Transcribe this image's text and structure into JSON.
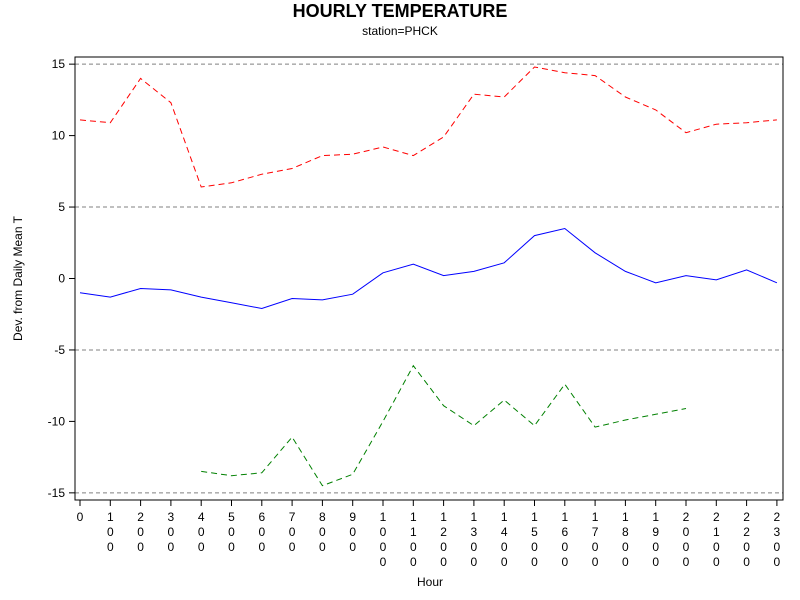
{
  "chart_data": {
    "type": "line",
    "title": "HOURLY TEMPERATURE",
    "subtitle": "station=PHCK",
    "xlabel": "Hour",
    "ylabel": "Dev. from Daily Mean T",
    "ylim": [
      -15.5,
      15.5
    ],
    "yticks": [
      15,
      10,
      5,
      0,
      -5,
      -10,
      -15
    ],
    "reference_lines": [
      15,
      5,
      -5,
      -15
    ],
    "x": [
      "0",
      "100",
      "200",
      "300",
      "400",
      "500",
      "600",
      "700",
      "800",
      "900",
      "1000",
      "1100",
      "1200",
      "1300",
      "1400",
      "1500",
      "1600",
      "1700",
      "1800",
      "1900",
      "2000",
      "2100",
      "2200",
      "2300"
    ],
    "series": [
      {
        "color": "#ff0000",
        "dash": "dashed",
        "values": [
          11.1,
          10.9,
          14.0,
          12.3,
          6.4,
          6.7,
          7.3,
          7.7,
          8.6,
          8.7,
          9.2,
          8.6,
          9.9,
          12.9,
          12.7,
          14.8,
          14.4,
          14.2,
          12.7,
          11.8,
          10.2,
          10.8,
          10.9,
          11.1
        ]
      },
      {
        "color": "#0000ff",
        "dash": "solid",
        "values": [
          -1.0,
          -1.3,
          -0.7,
          -0.8,
          -1.3,
          -1.7,
          -2.1,
          -1.4,
          -1.5,
          -1.1,
          0.4,
          1.0,
          0.2,
          0.5,
          1.1,
          3.0,
          3.5,
          1.8,
          0.5,
          -0.3,
          0.2,
          -0.1,
          0.6,
          -0.3
        ]
      },
      {
        "color": "#008000",
        "dash": "dashed",
        "values": [
          null,
          null,
          null,
          null,
          -13.5,
          -13.8,
          -13.6,
          -11.1,
          -14.5,
          -13.7,
          -10.0,
          -6.1,
          -8.9,
          -10.3,
          -8.5,
          -10.3,
          -7.4,
          -10.4,
          -9.9,
          -9.5,
          -9.1,
          null,
          null,
          null
        ]
      }
    ]
  }
}
